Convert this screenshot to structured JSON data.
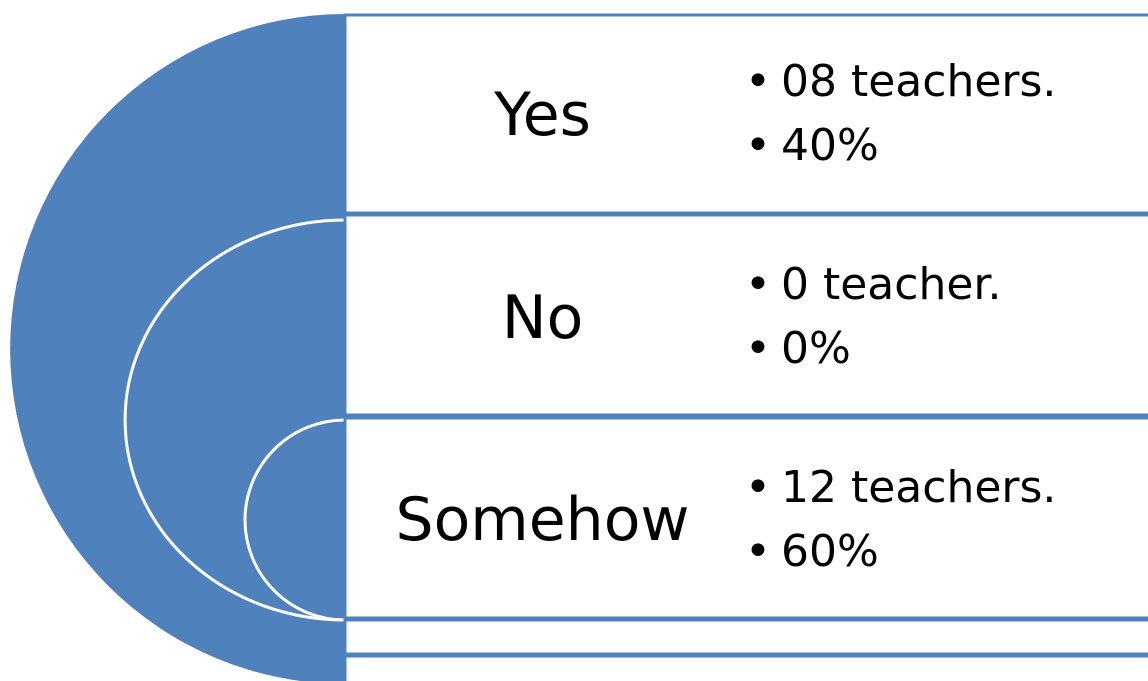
{
  "colors": {
    "accent_fill": "#4F81BD",
    "ring_line": "#FFFFFF",
    "row_border": "#4F81BD",
    "row_fill": "#FFFFFF",
    "text": "#000000"
  },
  "diagram": {
    "type": "nested-arc-list",
    "rows": [
      {
        "label": "Yes",
        "bullets": [
          "08 teachers.",
          "40%"
        ]
      },
      {
        "label": "No",
        "bullets": [
          "0 teacher.",
          "0%"
        ]
      },
      {
        "label": "Somehow",
        "bullets": [
          "12 teachers.",
          "60%"
        ]
      }
    ]
  }
}
